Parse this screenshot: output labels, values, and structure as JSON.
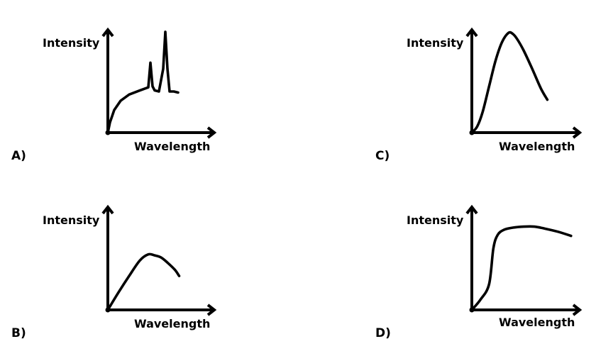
{
  "chart_data": [
    {
      "type": "line",
      "panel": "A)",
      "xlabel": "Wavelength",
      "ylabel": "Intensity",
      "xlim": [
        0,
        1
      ],
      "ylim": [
        0,
        1
      ],
      "grid": false,
      "series": [
        {
          "x": [
            0,
            0.02,
            0.06,
            0.12,
            0.2,
            0.3,
            0.38,
            0.4,
            0.42,
            0.44,
            0.48,
            0.52,
            0.54,
            0.56,
            0.58,
            0.62,
            0.66
          ],
          "y": [
            0,
            0.1,
            0.22,
            0.31,
            0.37,
            0.41,
            0.44,
            0.68,
            0.45,
            0.41,
            0.4,
            0.62,
            0.98,
            0.62,
            0.4,
            0.4,
            0.39
          ]
        }
      ]
    },
    {
      "type": "line",
      "panel": "B)",
      "xlabel": "Wavelength",
      "ylabel": "Intensity",
      "xlim": [
        0,
        1
      ],
      "ylim": [
        0,
        1
      ],
      "grid": false,
      "series": [
        {
          "x": [
            0,
            0.1,
            0.2,
            0.3,
            0.38,
            0.44,
            0.5,
            0.56,
            0.63,
            0.67
          ],
          "y": [
            0,
            0.17,
            0.33,
            0.48,
            0.54,
            0.53,
            0.51,
            0.46,
            0.39,
            0.33
          ]
        }
      ]
    },
    {
      "type": "line",
      "panel": "C)",
      "xlabel": "Wavelength",
      "ylabel": "Intensity",
      "xlim": [
        0,
        1
      ],
      "ylim": [
        0,
        1
      ],
      "grid": false,
      "series": [
        {
          "x": [
            0,
            0.05,
            0.1,
            0.16,
            0.22,
            0.28,
            0.34,
            0.38,
            0.42,
            0.48,
            0.56,
            0.64,
            0.7
          ],
          "y": [
            0,
            0.06,
            0.2,
            0.45,
            0.7,
            0.88,
            0.97,
            0.96,
            0.91,
            0.8,
            0.62,
            0.43,
            0.32
          ]
        }
      ]
    },
    {
      "type": "line",
      "panel": "D)",
      "xlabel": "Wavelength",
      "ylabel": "Intensity",
      "xlim": [
        0,
        1
      ],
      "ylim": [
        0,
        1
      ],
      "grid": false,
      "series": [
        {
          "x": [
            0,
            0.08,
            0.16,
            0.2,
            0.24,
            0.3,
            0.38,
            0.48,
            0.58,
            0.68,
            0.8,
            0.92
          ],
          "y": [
            0,
            0.1,
            0.25,
            0.6,
            0.73,
            0.78,
            0.8,
            0.81,
            0.81,
            0.79,
            0.76,
            0.72
          ]
        }
      ]
    }
  ]
}
